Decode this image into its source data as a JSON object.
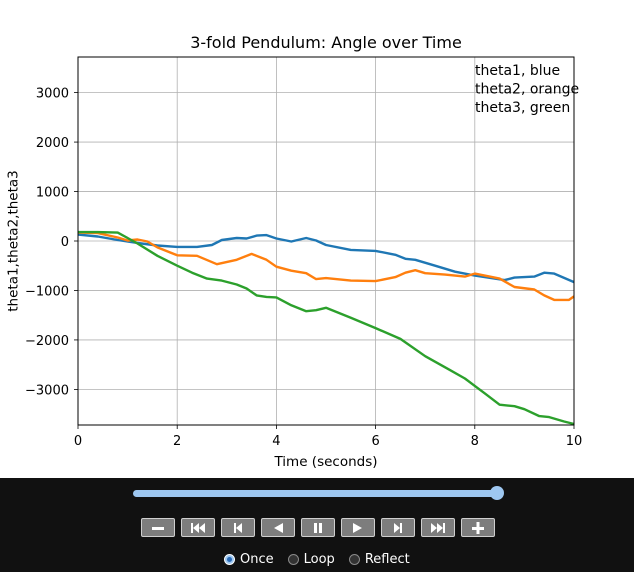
{
  "chart_data": {
    "type": "line",
    "title": "3-fold Pendulum: Angle over Time",
    "xlabel": "Time (seconds)",
    "ylabel": "theta1,theta2,theta3",
    "xlim": [
      0,
      10
    ],
    "ylim": [
      -3720,
      3720
    ],
    "xticks": [
      0,
      2,
      4,
      6,
      8,
      10
    ],
    "yticks": [
      -3000,
      -2000,
      -1000,
      0,
      1000,
      2000,
      3000
    ],
    "grid": true,
    "legend_placement": "top-right",
    "legend": [
      "theta1, blue",
      "theta2, orange",
      "theta3, green"
    ],
    "series": [
      {
        "color": "#1f77b4",
        "x": [
          0,
          0.4,
          0.8,
          1.2,
          1.6,
          2.0,
          2.4,
          2.7,
          2.9,
          3.2,
          3.4,
          3.6,
          3.8,
          4.0,
          4.3,
          4.6,
          4.8,
          5.0,
          5.5,
          6.0,
          6.4,
          6.6,
          6.8,
          7.2,
          7.6,
          8.0,
          8.4,
          8.6,
          8.8,
          9.2,
          9.4,
          9.6,
          10.0
        ],
        "y": [
          130,
          90,
          20,
          -40,
          -90,
          -120,
          -120,
          -80,
          20,
          60,
          50,
          110,
          120,
          50,
          -10,
          60,
          10,
          -80,
          -180,
          -200,
          -280,
          -360,
          -380,
          -500,
          -620,
          -700,
          -760,
          -790,
          -740,
          -720,
          -640,
          -660,
          -830
        ]
      },
      {
        "color": "#ff7f0e",
        "x": [
          0,
          0.4,
          0.8,
          1.0,
          1.2,
          1.4,
          1.6,
          2.0,
          2.4,
          2.8,
          3.2,
          3.5,
          3.8,
          4.0,
          4.3,
          4.6,
          4.8,
          5.0,
          5.5,
          6.0,
          6.4,
          6.6,
          6.8,
          7.0,
          7.4,
          7.8,
          8.0,
          8.3,
          8.5,
          8.8,
          9.2,
          9.4,
          9.6,
          9.9,
          10.0
        ],
        "y": [
          170,
          160,
          70,
          10,
          30,
          -10,
          -130,
          -290,
          -300,
          -470,
          -380,
          -260,
          -380,
          -520,
          -600,
          -650,
          -770,
          -750,
          -800,
          -810,
          -730,
          -640,
          -590,
          -650,
          -680,
          -720,
          -660,
          -720,
          -760,
          -930,
          -980,
          -1100,
          -1190,
          -1190,
          -1120
        ]
      },
      {
        "color": "#2ca02c",
        "x": [
          0,
          0.4,
          0.8,
          1.0,
          1.2,
          1.6,
          2.0,
          2.3,
          2.6,
          2.9,
          3.2,
          3.4,
          3.6,
          3.8,
          4.0,
          4.3,
          4.6,
          4.8,
          5.0,
          5.5,
          6.0,
          6.5,
          7.0,
          7.5,
          7.8,
          8.0,
          8.2,
          8.5,
          8.8,
          9.0,
          9.3,
          9.5,
          9.8,
          10.0
        ],
        "y": [
          180,
          180,
          170,
          60,
          -50,
          -300,
          -500,
          -640,
          -760,
          -800,
          -880,
          -960,
          -1100,
          -1130,
          -1140,
          -1300,
          -1420,
          -1400,
          -1350,
          -1550,
          -1760,
          -1980,
          -2330,
          -2610,
          -2780,
          -2930,
          -3080,
          -3310,
          -3340,
          -3400,
          -3540,
          -3560,
          -3650,
          -3700
        ]
      }
    ]
  },
  "controls": {
    "slider_fraction": 1.0,
    "buttons": [
      "decrease-speed",
      "skip-to-start",
      "step-back",
      "play-reverse",
      "pause",
      "play-forward",
      "step-forward",
      "skip-to-end",
      "increase-speed"
    ],
    "modes": [
      "Once",
      "Loop",
      "Reflect"
    ],
    "selected_mode": "Once"
  }
}
